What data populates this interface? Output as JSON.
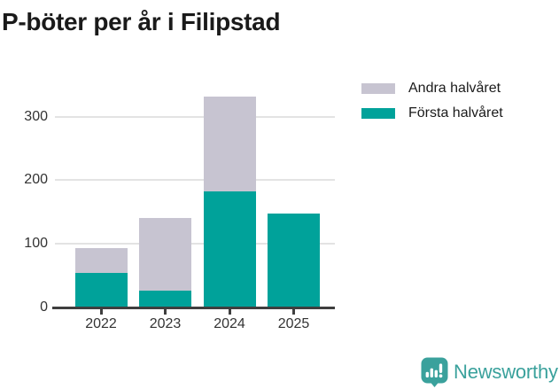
{
  "title": "P-böter per år i Filipstad",
  "chart_data": {
    "type": "bar",
    "stacked": true,
    "title": "P-böter per år i Filipstad",
    "categories": [
      "2022",
      "2023",
      "2024",
      "2025"
    ],
    "series": [
      {
        "name": "Första halvåret",
        "color": "#00a29a",
        "values": [
          54,
          26,
          182,
          148
        ]
      },
      {
        "name": "Andra halvåret",
        "color": "#c7c4d1",
        "values": [
          39,
          114,
          150,
          0
        ]
      }
    ],
    "totals": [
      93,
      140,
      332,
      148
    ],
    "xlabel": "",
    "ylabel": "",
    "yticks": [
      0,
      100,
      200,
      300
    ],
    "ylim": [
      0,
      345
    ],
    "grid": true,
    "legend_position": "top-right",
    "legend_order": [
      "Andra halvåret",
      "Första halvåret"
    ]
  },
  "colors": {
    "first_half": "#00a29a",
    "second_half": "#c7c4d1",
    "gridline": "#e3e3e3",
    "axis": "#3f3f3f",
    "title_text": "#1a1a1a",
    "tick_text": "#333333",
    "brand_teal": "#3aa19c"
  },
  "footer": {
    "brand": "Newsworthy",
    "logo_icon": "newsworthy-speech-bubble-chart-icon"
  }
}
